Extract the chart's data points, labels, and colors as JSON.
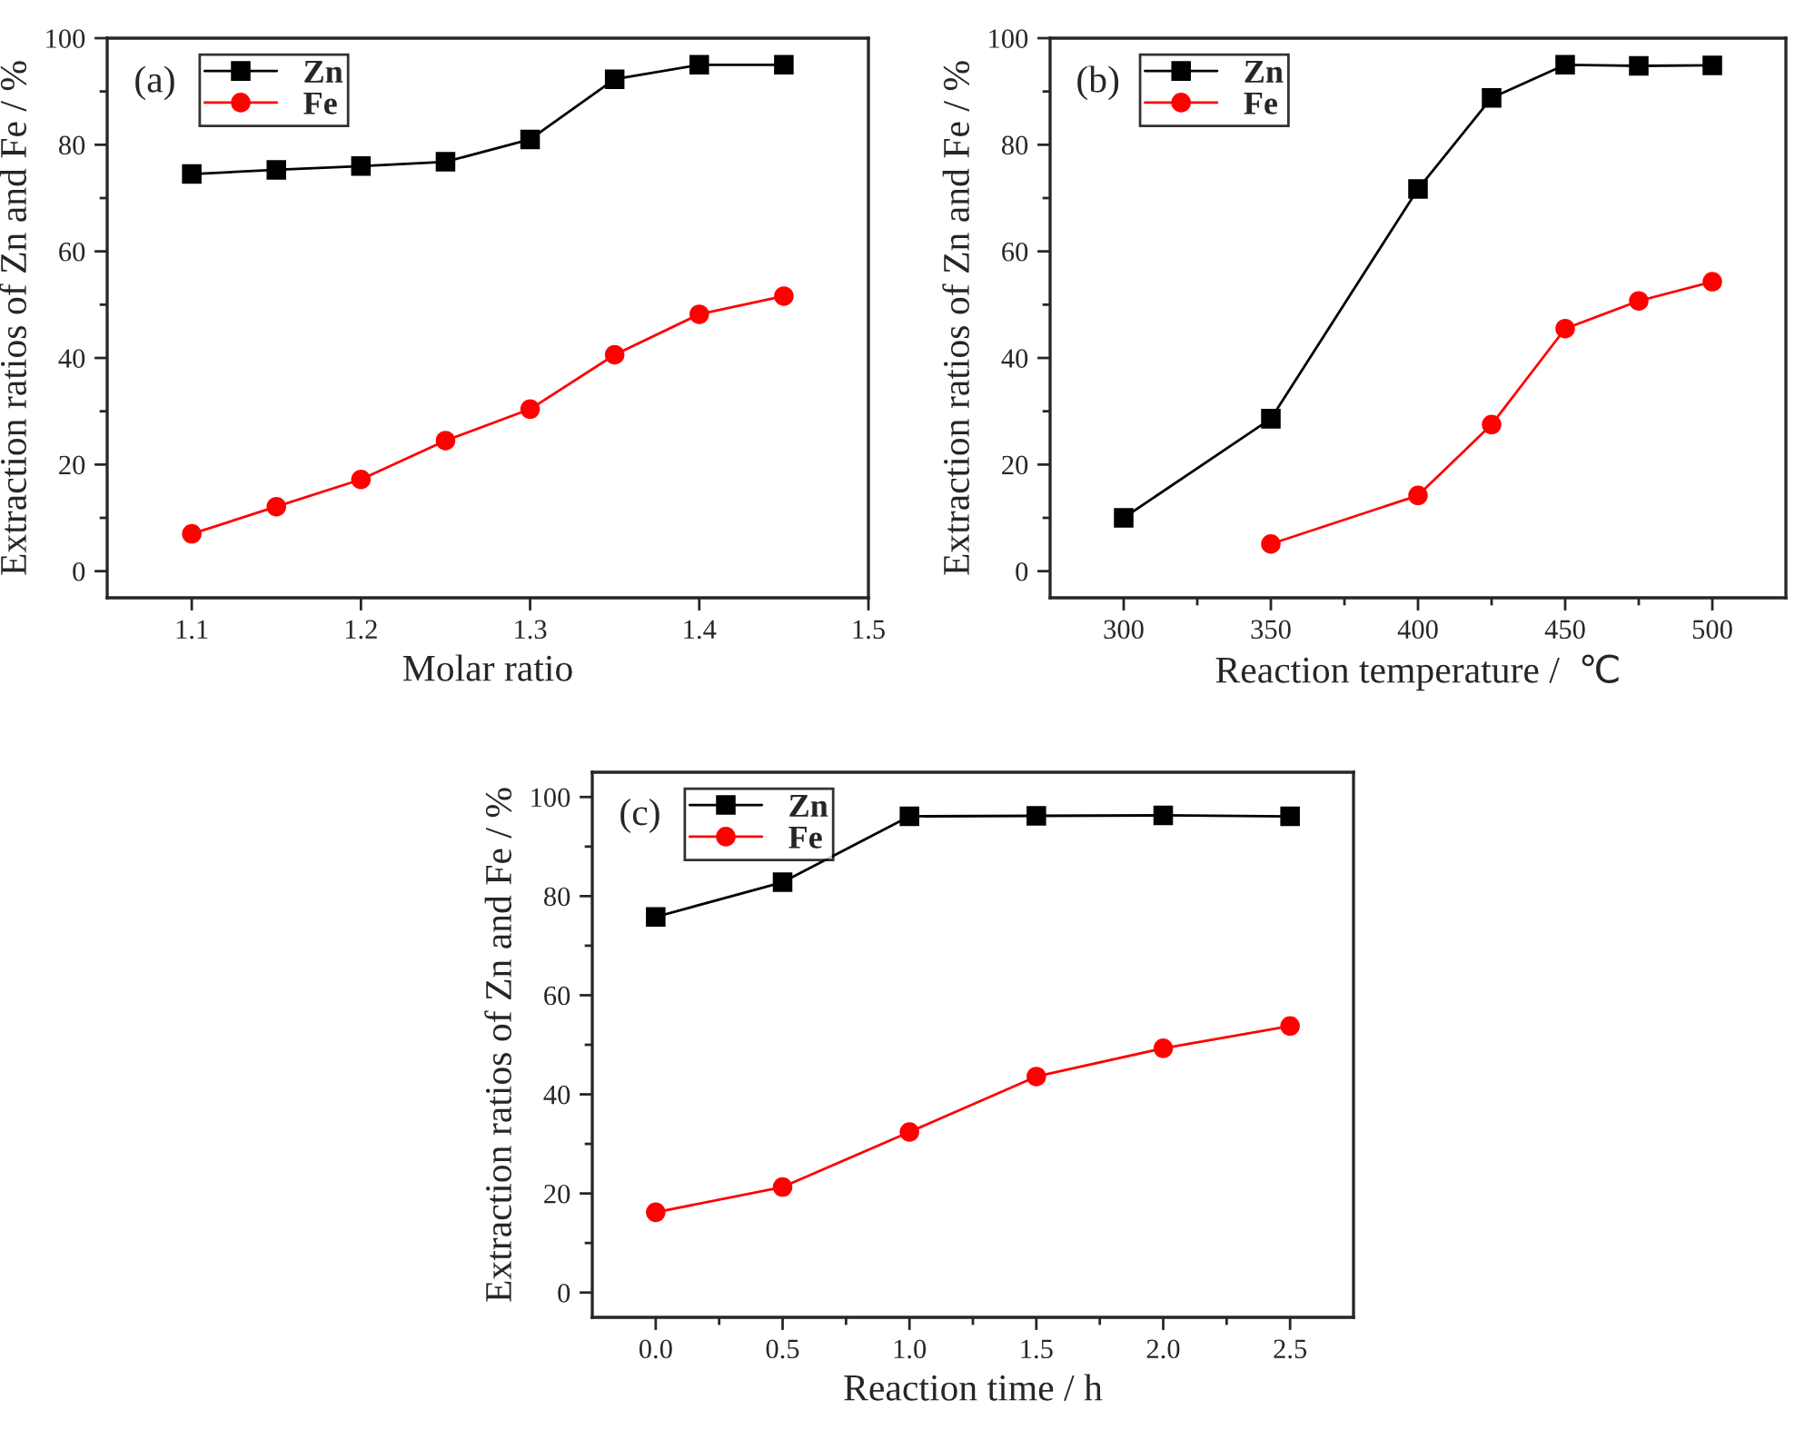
{
  "chart_data": [
    {
      "type": "line",
      "annotations": [
        "(a)"
      ],
      "xlabel": "Molar ratio",
      "ylabel": "Extraction ratios of Zn and Fe / %",
      "x": [
        1.1,
        1.15,
        1.2,
        1.25,
        1.3,
        1.35,
        1.4,
        1.45
      ],
      "series": [
        {
          "name": "Zn",
          "color": "#000000",
          "marker": "square",
          "values": [
            74.5,
            75.3,
            76,
            76.8,
            81,
            92.3,
            95,
            95
          ]
        },
        {
          "name": "Fe",
          "color": "#ff0000",
          "marker": "circle",
          "values": [
            7,
            12.1,
            17.2,
            24.5,
            30.4,
            40.6,
            48.2,
            51.6
          ]
        }
      ],
      "xlim": [
        1.05,
        1.5
      ],
      "xticks": [
        1.1,
        1.2,
        1.3,
        1.4,
        1.5
      ],
      "ylim": [
        -5,
        100
      ],
      "yticks": [
        0,
        {
          "value": 10,
          "label": null
        },
        20,
        {
          "value": 30,
          "label": null
        },
        40,
        {
          "value": 50,
          "label": null
        },
        60,
        {
          "value": 70,
          "label": null
        },
        80,
        {
          "value": 90,
          "label": null
        },
        100
      ],
      "legend": "top left",
      "grid": false
    },
    {
      "type": "line",
      "annotations": [
        "(b)"
      ],
      "xlabel": "Reaction temperature /  ℃",
      "ylabel": "Extraction ratios of Zn and Fe / %",
      "series": [
        {
          "name": "Zn",
          "color": "#000000",
          "marker": "square",
          "x": [
            300,
            350,
            400,
            425,
            450,
            475,
            500
          ],
          "values": [
            10,
            28.6,
            71.7,
            88.8,
            95,
            94.8,
            94.9
          ]
        },
        {
          "name": "Fe",
          "color": "#ff0000",
          "marker": "circle",
          "x": [
            350,
            400,
            425,
            450,
            475,
            500
          ],
          "values": [
            5.1,
            14.2,
            27.5,
            45.5,
            50.7,
            54.3
          ]
        }
      ],
      "xlim": [
        275,
        525
      ],
      "xticks": [
        300,
        {
          "value": 325,
          "label": null
        },
        350,
        {
          "value": 375,
          "label": null
        },
        400,
        {
          "value": 425,
          "label": null
        },
        450,
        {
          "value": 475,
          "label": null
        },
        500
      ],
      "ylim": [
        -5,
        100
      ],
      "yticks": [
        0,
        {
          "value": 10,
          "label": null
        },
        20,
        {
          "value": 30,
          "label": null
        },
        40,
        {
          "value": 50,
          "label": null
        },
        60,
        {
          "value": 70,
          "label": null
        },
        80,
        {
          "value": 90,
          "label": null
        },
        100
      ],
      "legend": "top left",
      "grid": false
    },
    {
      "type": "line",
      "annotations": [
        "(c)"
      ],
      "xlabel": "Reaction time / h",
      "ylabel": "Extraction ratios of Zn and Fe / %",
      "x": [
        0,
        0.5,
        1,
        1.5,
        2,
        2.5
      ],
      "series": [
        {
          "name": "Zn",
          "color": "#000000",
          "marker": "square",
          "values": [
            75.8,
            82.8,
            96.1,
            96.2,
            96.3,
            96.1
          ]
        },
        {
          "name": "Fe",
          "color": "#ff0000",
          "marker": "circle",
          "values": [
            16.2,
            21.3,
            32.4,
            43.6,
            49.3,
            53.8
          ]
        }
      ],
      "xlim": [
        -0.25,
        2.75
      ],
      "xticks": [
        {
          "value": 0,
          "label": "0.0"
        },
        {
          "value": 0.25,
          "label": null
        },
        0.5,
        {
          "value": 0.75,
          "label": null
        },
        {
          "value": 1,
          "label": "1.0"
        },
        {
          "value": 1.25,
          "label": null
        },
        1.5,
        {
          "value": 1.75,
          "label": null
        },
        {
          "value": 2,
          "label": "2.0"
        },
        {
          "value": 2.25,
          "label": null
        },
        2.5
      ],
      "ylim": [
        -5,
        105
      ],
      "yticks": [
        0,
        {
          "value": 10,
          "label": null
        },
        20,
        {
          "value": 30,
          "label": null
        },
        40,
        {
          "value": 50,
          "label": null
        },
        60,
        {
          "value": 70,
          "label": null
        },
        80,
        {
          "value": 90,
          "label": null
        },
        100
      ],
      "legend": "top left",
      "grid": false
    }
  ]
}
